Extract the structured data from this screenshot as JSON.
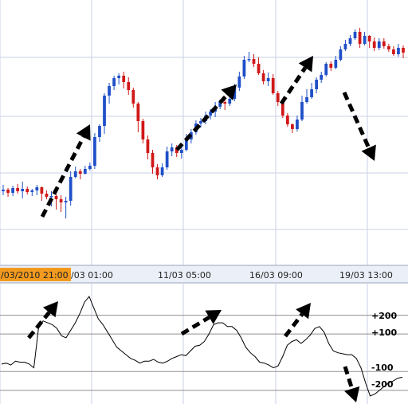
{
  "chart_data": [
    {
      "type": "candlestick",
      "title": "",
      "xlabel": "",
      "ylabel": "",
      "x_tick_labels": [
        "/03/2010 21:00",
        "/03 01:00",
        "11/03 05:00",
        "16/03 09:00",
        "19/03 13:00"
      ],
      "highlighted_tick": "/03/2010 21:00",
      "colors": {
        "up": "#1f4fc8",
        "down": "#d01818",
        "highlight": "#f29a1e",
        "grid": "#c8d2e6"
      },
      "candles": [
        [
          240,
          238,
          232,
          245
        ],
        [
          238,
          242,
          236,
          247
        ],
        [
          242,
          236,
          233,
          246
        ],
        [
          236,
          240,
          231,
          243
        ],
        [
          240,
          237,
          228,
          249
        ],
        [
          237,
          241,
          234,
          244
        ],
        [
          241,
          239,
          237,
          246
        ],
        [
          239,
          235,
          232,
          245
        ],
        [
          235,
          243,
          234,
          252
        ],
        [
          243,
          247,
          239,
          250
        ],
        [
          247,
          246,
          240,
          259
        ],
        [
          246,
          250,
          244,
          263
        ],
        [
          250,
          254,
          245,
          266
        ],
        [
          254,
          252,
          247,
          274
        ],
        [
          252,
          222,
          215,
          258
        ],
        [
          222,
          215,
          209,
          224
        ],
        [
          215,
          218,
          212,
          225
        ],
        [
          218,
          212,
          208,
          219
        ],
        [
          212,
          208,
          204,
          214
        ],
        [
          208,
          172,
          167,
          212
        ],
        [
          172,
          158,
          156,
          178
        ],
        [
          158,
          120,
          117,
          168
        ],
        [
          120,
          108,
          104,
          130
        ],
        [
          108,
          98,
          95,
          113
        ],
        [
          98,
          95,
          92,
          106
        ],
        [
          95,
          103,
          90,
          111
        ],
        [
          103,
          113,
          97,
          119
        ],
        [
          113,
          130,
          110,
          135
        ],
        [
          130,
          152,
          128,
          166
        ],
        [
          152,
          175,
          149,
          180
        ],
        [
          175,
          192,
          170,
          200
        ],
        [
          192,
          210,
          188,
          218
        ],
        [
          210,
          220,
          206,
          225
        ],
        [
          220,
          210,
          205,
          222
        ],
        [
          210,
          190,
          184,
          213
        ],
        [
          190,
          185,
          180,
          196
        ],
        [
          185,
          192,
          182,
          197
        ],
        [
          192,
          188,
          185,
          199
        ],
        [
          188,
          175,
          168,
          190
        ],
        [
          175,
          166,
          162,
          180
        ],
        [
          166,
          155,
          151,
          169
        ],
        [
          155,
          152,
          148,
          160
        ],
        [
          152,
          145,
          140,
          156
        ],
        [
          145,
          140,
          137,
          150
        ],
        [
          140,
          134,
          128,
          147
        ],
        [
          134,
          128,
          125,
          137
        ],
        [
          128,
          130,
          122,
          138
        ],
        [
          130,
          124,
          118,
          133
        ],
        [
          124,
          110,
          105,
          127
        ],
        [
          110,
          96,
          90,
          114
        ],
        [
          96,
          75,
          70,
          99
        ],
        [
          75,
          74,
          65,
          78
        ],
        [
          74,
          80,
          68,
          84
        ],
        [
          80,
          92,
          72,
          94
        ],
        [
          92,
          102,
          88,
          106
        ],
        [
          102,
          98,
          91,
          108
        ],
        [
          98,
          117,
          93,
          119
        ],
        [
          117,
          128,
          114,
          133
        ],
        [
          128,
          145,
          123,
          148
        ],
        [
          145,
          156,
          142,
          159
        ],
        [
          156,
          162,
          155,
          167
        ],
        [
          162,
          150,
          145,
          165
        ],
        [
          150,
          128,
          120,
          152
        ],
        [
          128,
          122,
          112,
          130
        ],
        [
          122,
          112,
          104,
          124
        ],
        [
          112,
          100,
          97,
          117
        ],
        [
          100,
          94,
          90,
          104
        ],
        [
          94,
          80,
          78,
          96
        ],
        [
          80,
          85,
          77,
          89
        ],
        [
          85,
          75,
          70,
          87
        ],
        [
          75,
          62,
          58,
          77
        ],
        [
          62,
          55,
          50,
          64
        ],
        [
          55,
          48,
          44,
          58
        ],
        [
          48,
          40,
          37,
          50
        ],
        [
          40,
          55,
          35,
          60
        ],
        [
          55,
          45,
          40,
          57
        ],
        [
          45,
          52,
          44,
          60
        ],
        [
          52,
          60,
          47,
          64
        ],
        [
          60,
          52,
          48,
          63
        ],
        [
          52,
          58,
          48,
          61
        ],
        [
          58,
          62,
          55,
          65
        ],
        [
          62,
          68,
          58,
          70
        ],
        [
          68,
          60,
          55,
          71
        ],
        [
          60,
          66,
          57,
          73
        ]
      ]
    },
    {
      "type": "line",
      "title": "",
      "xlabel": "",
      "ylabel": "",
      "levels": [
        {
          "label": "+200",
          "value": 200
        },
        {
          "label": "+100",
          "value": 100
        },
        {
          "label": "-100",
          "value": -100
        },
        {
          "label": "-200",
          "value": -200
        }
      ],
      "ylim": [
        -260,
        330
      ],
      "series": [
        {
          "values": [
            -60,
            -55,
            -65,
            -45,
            -50,
            -50,
            -60,
            -80,
            130,
            170,
            160,
            150,
            130,
            90,
            80,
            120,
            160,
            210,
            270,
            300,
            240,
            180,
            150,
            110,
            70,
            30,
            10,
            -10,
            -30,
            -40,
            -55,
            -45,
            -45,
            -35,
            -50,
            -55,
            -45,
            -30,
            -20,
            -10,
            -15,
            10,
            35,
            40,
            60,
            100,
            150,
            160,
            160,
            140,
            140,
            120,
            80,
            30,
            0,
            -20,
            -50,
            -55,
            -65,
            -80,
            -70,
            -20,
            40,
            60,
            70,
            50,
            70,
            95,
            130,
            140,
            110,
            50,
            10,
            0,
            -5,
            -10,
            -10,
            -30,
            -80,
            -160,
            -230,
            -220,
            -200,
            -180,
            -160,
            -150,
            -135,
            -130
          ]
        }
      ]
    }
  ]
}
